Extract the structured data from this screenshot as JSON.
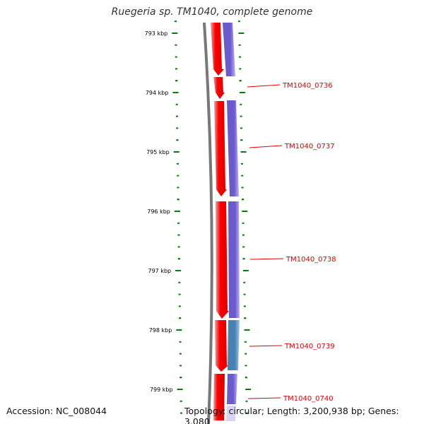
{
  "title": "Ruegeria sp. TM1040, complete genome",
  "footer": {
    "accession": "Accession: NC_008044",
    "topology": "Topology: circular; Length: 3,200,938 bp; Genes: 3,080"
  },
  "scale": {
    "unit": "kbp",
    "ticks": [
      "793 kbp",
      "794 kbp",
      "795 kbp",
      "796 kbp",
      "797 kbp",
      "798 kbp",
      "799 kbp"
    ]
  },
  "genes": [
    {
      "locus": "TM1040_0736",
      "color": "#ff0000"
    },
    {
      "locus": "TM1040_0737",
      "color": "#ff0000"
    },
    {
      "locus": "TM1040_0738",
      "color": "#ff0000"
    },
    {
      "locus": "TM1040_0739",
      "color": "#4682b4"
    },
    {
      "locus": "TM1040_0740",
      "color": "#ff0000"
    }
  ],
  "colors": {
    "backbone": "#777777",
    "forward_track": "#ff0000",
    "reverse_track": "#6a5acd",
    "highlight": "#4682b4",
    "ticks": "#008000",
    "labels": "#e00000"
  }
}
